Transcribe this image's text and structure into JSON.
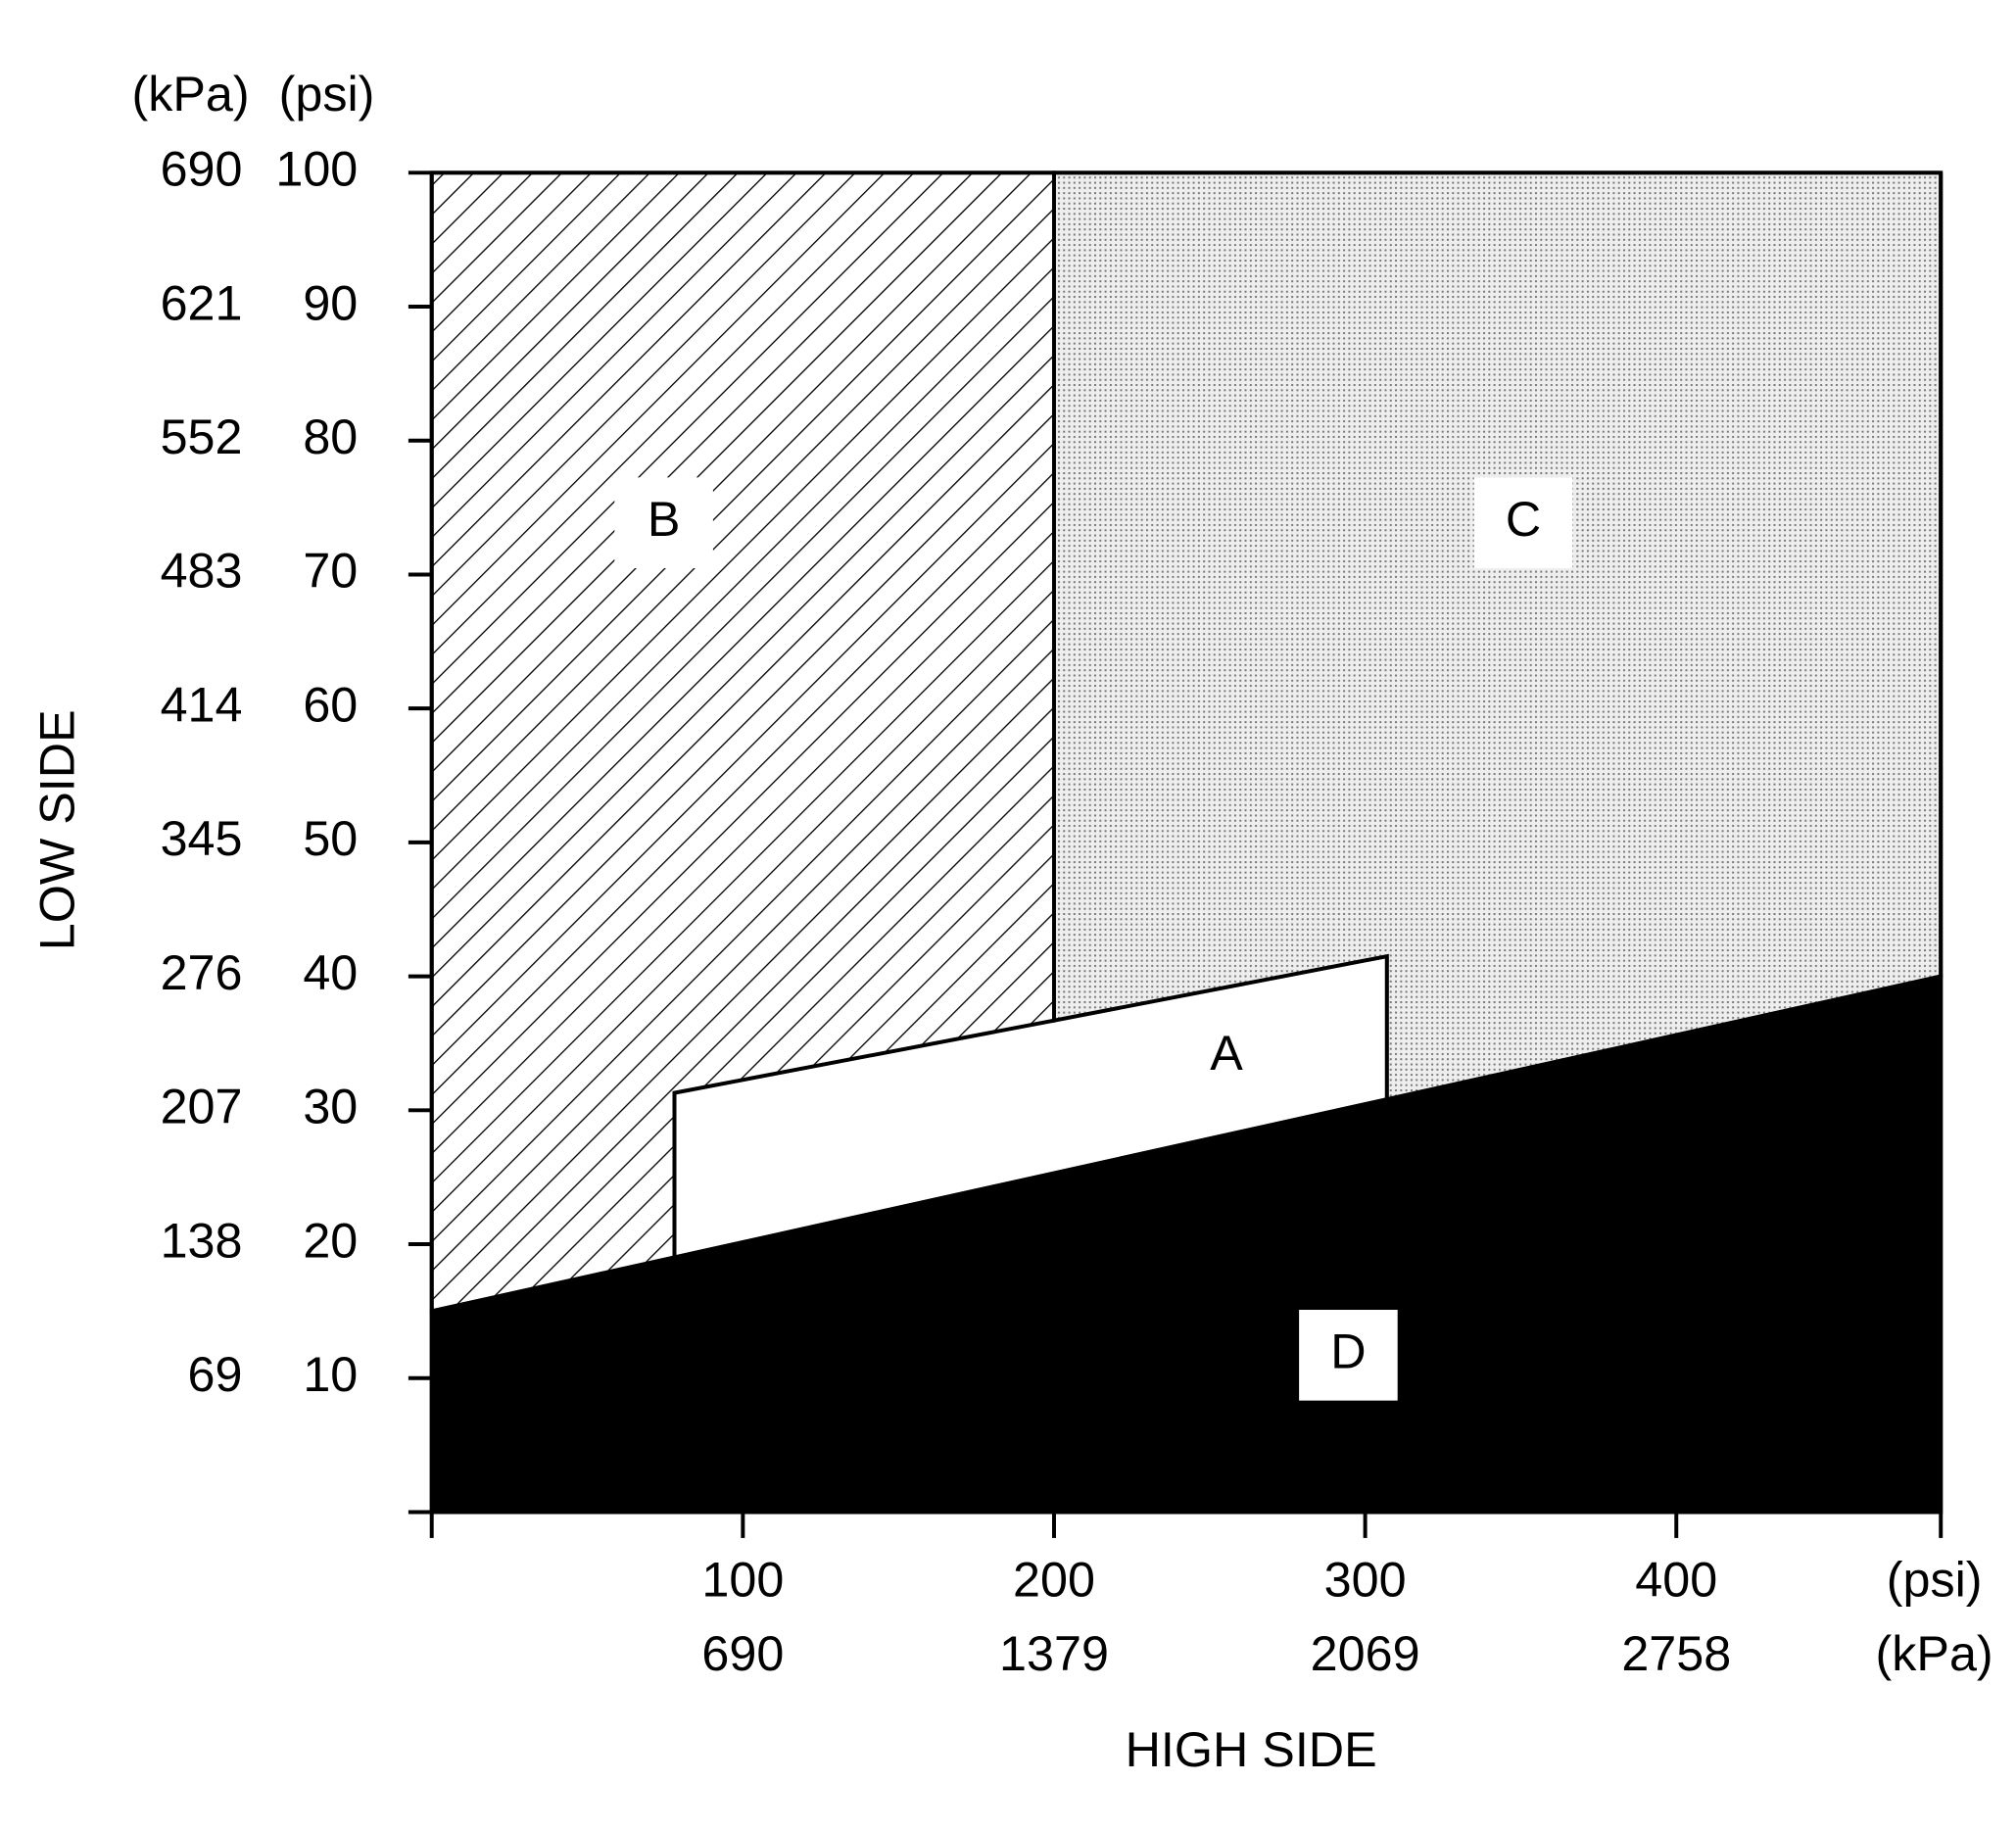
{
  "chart_data": {
    "type": "region",
    "x_label": "HIGH SIDE",
    "y_label": "LOW SIDE",
    "x_units": [
      "(psi)",
      "(kPa)"
    ],
    "y_units": [
      "(kPa)",
      "(psi)"
    ],
    "xlim": [
      0,
      485
    ],
    "ylim": [
      0,
      100
    ],
    "xticks": [
      100,
      200,
      300,
      400
    ],
    "xticks_kpa": [
      690,
      1379,
      2069,
      2758
    ],
    "yticks": [
      10,
      20,
      30,
      40,
      50,
      60,
      70,
      80,
      90,
      100
    ],
    "yticks_kpa": [
      69,
      138,
      207,
      276,
      345,
      414,
      483,
      552,
      621,
      690
    ],
    "regions": [
      {
        "label": "A",
        "fill": "#ffffff",
        "pattern": "none",
        "points": [
          [
            78,
            19
          ],
          [
            78,
            31.3
          ],
          [
            307,
            41.5
          ],
          [
            307,
            30.8
          ]
        ]
      },
      {
        "label": "B",
        "fill": "#ffffff",
        "pattern": "hatch",
        "points": [
          [
            0,
            15
          ],
          [
            0,
            100
          ],
          [
            200,
            100
          ],
          [
            200,
            36.7
          ],
          [
            78,
            31.3
          ],
          [
            78,
            19
          ]
        ]
      },
      {
        "label": "C",
        "fill": "#e2e2e2",
        "pattern": "dots",
        "points": [
          [
            200,
            100
          ],
          [
            485,
            100
          ],
          [
            485,
            40
          ],
          [
            307,
            30.8
          ],
          [
            307,
            41.5
          ],
          [
            200,
            36.7
          ]
        ]
      },
      {
        "label": "D",
        "fill": "#000000",
        "pattern": "none",
        "points": [
          [
            0,
            0
          ],
          [
            0,
            15
          ],
          [
            485,
            40
          ],
          [
            485,
            0
          ]
        ]
      }
    ]
  }
}
